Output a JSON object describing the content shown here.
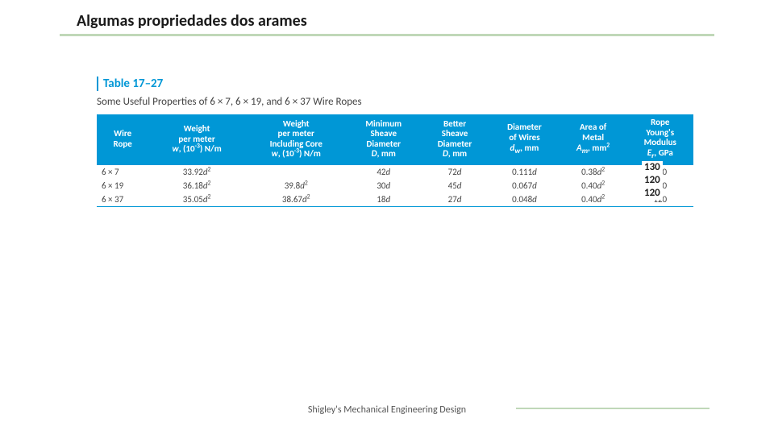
{
  "page": {
    "title": "Algumas propriedades dos arames",
    "footer": "Shigley's Mechanical Engineering Design"
  },
  "table": {
    "label": "Table 17–27",
    "caption": "Some Useful Properties of 6 × 7, 6 × 19, and 6 × 37 Wire Ropes",
    "header_bg": "#0097d6",
    "header_color": "#ffffff",
    "rule_color": "#0097d6",
    "columns": [
      {
        "lines": [
          "Wire",
          "Rope"
        ]
      },
      {
        "lines": [
          "Weight",
          "per meter",
          "w, (10⁻³) N/m"
        ]
      },
      {
        "lines": [
          "Weight",
          "per meter",
          "Including Core",
          "w, (10⁻³) N/m"
        ]
      },
      {
        "lines": [
          "Minimum",
          "Sheave",
          "Diameter",
          "D, mm"
        ]
      },
      {
        "lines": [
          "Better",
          "Sheave",
          "Diameter",
          "D, mm"
        ]
      },
      {
        "lines": [
          "Diameter",
          "of Wires",
          "d_w, mm"
        ]
      },
      {
        "lines": [
          "Area of",
          "Metal",
          "A_m, mm²"
        ]
      },
      {
        "lines": [
          "Rope",
          "Young's",
          "Modulus",
          "E_r, GPa"
        ]
      }
    ],
    "rows": [
      {
        "wire_rope": "6 × 7",
        "w": "33.92d²",
        "w_core": "",
        "d_min": "42d",
        "d_better": "72d",
        "dw": "0.111d",
        "am": "0.38d²",
        "er": "130"
      },
      {
        "wire_rope": "6 × 19",
        "w": "36.18d²",
        "w_core": "39.8d²",
        "d_min": "30d",
        "d_better": "45d",
        "dw": "0.067d",
        "am": "0.40d²",
        "er": "120"
      },
      {
        "wire_rope": "6 × 37",
        "w": "35.05d²",
        "w_core": "38.67d²",
        "d_min": "18d",
        "d_better": "27d",
        "dw": "0.048d",
        "am": "0.40d²",
        "er": "120"
      }
    ]
  },
  "overlay": {
    "line1": "130",
    "line2": "120",
    "line3": "120"
  },
  "colors": {
    "accent_line": "#c0d8b8"
  }
}
